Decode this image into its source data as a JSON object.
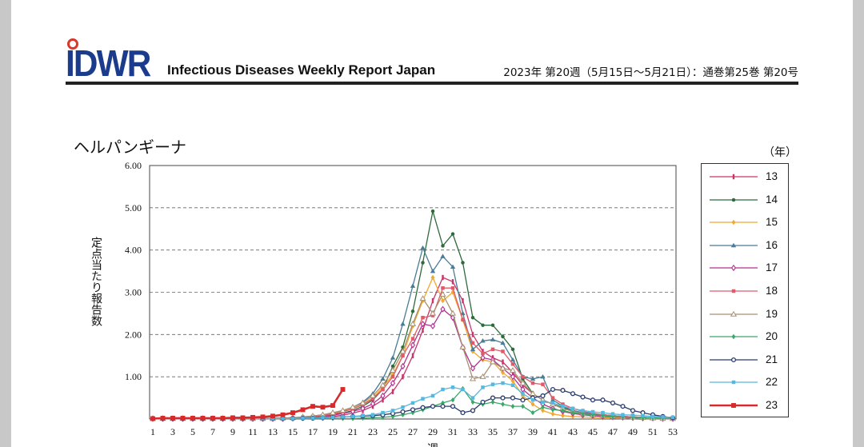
{
  "header": {
    "logo": "IDWR",
    "publication_title": "Infectious Diseases Weekly Report Japan",
    "issue_info": "2023年 第20週（5月15日〜5月21日）：通巻第25巻  第20号"
  },
  "chart_data": {
    "type": "line",
    "title": "ヘルパンギーナ",
    "ylabel": "定点当たり報告数",
    "xlabel": "週",
    "legend_title": "（年）",
    "ylim": [
      0,
      6
    ],
    "yticks": [
      "6.00",
      "5.00",
      "4.00",
      "3.00",
      "2.00",
      "1.00"
    ],
    "xlim": [
      1,
      53
    ],
    "xticks": [
      1,
      3,
      5,
      7,
      9,
      11,
      13,
      15,
      17,
      19,
      21,
      23,
      25,
      27,
      29,
      31,
      33,
      35,
      37,
      39,
      41,
      43,
      45,
      47,
      49,
      51,
      53
    ],
    "grid": "horizontal-dashed",
    "legend_position": "right",
    "series": [
      {
        "name": "13",
        "color": "#c9356b",
        "marker": "bar",
        "values": [
          0.01,
          0.01,
          0.01,
          0.01,
          0.01,
          0.01,
          0.01,
          0.01,
          0.01,
          0.01,
          0.01,
          0.01,
          0.01,
          0.01,
          0.02,
          0.02,
          0.03,
          0.04,
          0.06,
          0.09,
          0.14,
          0.2,
          0.3,
          0.45,
          0.65,
          1.0,
          1.5,
          2.1,
          2.8,
          3.35,
          3.25,
          2.8,
          2.0,
          1.6,
          1.45,
          1.35,
          1.1,
          0.8,
          0.6,
          0.45,
          0.35,
          0.25,
          0.2,
          0.15,
          0.12,
          0.1,
          0.08,
          0.06,
          0.05,
          0.04,
          0.03,
          0.02,
          0.01
        ]
      },
      {
        "name": "14",
        "color": "#2e6b3c",
        "marker": "dot",
        "values": [
          0.01,
          0.01,
          0.01,
          0.01,
          0.01,
          0.01,
          0.01,
          0.01,
          0.01,
          0.01,
          0.01,
          0.01,
          0.02,
          0.02,
          0.03,
          0.04,
          0.05,
          0.07,
          0.1,
          0.14,
          0.2,
          0.3,
          0.45,
          0.7,
          1.25,
          1.7,
          2.55,
          3.7,
          4.92,
          4.1,
          4.38,
          3.7,
          2.4,
          2.22,
          2.22,
          1.95,
          1.65,
          0.95,
          0.6,
          0.45,
          0.35,
          0.27,
          0.2,
          0.15,
          0.12,
          0.1,
          0.08,
          0.06,
          0.05,
          0.04,
          0.03,
          0.02,
          0.01
        ]
      },
      {
        "name": "15",
        "color": "#f0a830",
        "marker": "diamond",
        "values": [
          0.01,
          0.01,
          0.01,
          0.01,
          0.01,
          0.01,
          0.01,
          0.01,
          0.01,
          0.01,
          0.01,
          0.01,
          0.01,
          0.02,
          0.03,
          0.04,
          0.06,
          0.09,
          0.13,
          0.18,
          0.25,
          0.35,
          0.5,
          0.75,
          1.05,
          1.5,
          2.2,
          2.8,
          3.35,
          2.8,
          3.0,
          2.35,
          1.6,
          1.4,
          1.35,
          1.1,
          0.9,
          0.55,
          0.35,
          0.2,
          0.12,
          0.08,
          0.06,
          0.05,
          0.04,
          0.03,
          0.03,
          0.02,
          0.02,
          0.01,
          0.01,
          0.01,
          0.01
        ]
      },
      {
        "name": "16",
        "color": "#4a7c95",
        "marker": "triangle",
        "values": [
          0.01,
          0.01,
          0.01,
          0.01,
          0.01,
          0.01,
          0.01,
          0.01,
          0.01,
          0.01,
          0.01,
          0.01,
          0.01,
          0.02,
          0.03,
          0.05,
          0.07,
          0.1,
          0.15,
          0.2,
          0.28,
          0.4,
          0.6,
          0.95,
          1.45,
          2.25,
          3.15,
          4.05,
          3.5,
          3.85,
          3.6,
          2.5,
          1.65,
          1.85,
          1.88,
          1.8,
          1.4,
          1.0,
          0.95,
          1.0,
          0.45,
          0.3,
          0.2,
          0.15,
          0.12,
          0.1,
          0.08,
          0.06,
          0.05,
          0.04,
          0.03,
          0.02,
          0.01
        ]
      },
      {
        "name": "17",
        "color": "#b0308f",
        "marker": "open-diamond",
        "values": [
          0.01,
          0.01,
          0.01,
          0.01,
          0.01,
          0.01,
          0.01,
          0.01,
          0.01,
          0.01,
          0.01,
          0.01,
          0.01,
          0.01,
          0.02,
          0.03,
          0.04,
          0.06,
          0.09,
          0.13,
          0.18,
          0.25,
          0.36,
          0.55,
          0.85,
          1.25,
          1.75,
          2.25,
          2.2,
          2.6,
          2.4,
          1.7,
          1.2,
          1.45,
          1.4,
          1.2,
          1.0,
          0.7,
          0.5,
          0.35,
          0.25,
          0.18,
          0.13,
          0.1,
          0.08,
          0.06,
          0.05,
          0.04,
          0.03,
          0.02,
          0.02,
          0.01,
          0.01
        ]
      },
      {
        "name": "18",
        "color": "#e05a6a",
        "marker": "square",
        "values": [
          0.01,
          0.01,
          0.01,
          0.01,
          0.01,
          0.01,
          0.01,
          0.01,
          0.01,
          0.01,
          0.01,
          0.01,
          0.01,
          0.02,
          0.03,
          0.04,
          0.06,
          0.08,
          0.12,
          0.17,
          0.24,
          0.34,
          0.48,
          0.7,
          1.0,
          1.5,
          1.9,
          2.4,
          2.45,
          3.1,
          3.1,
          2.35,
          1.8,
          1.55,
          1.65,
          1.6,
          1.3,
          1.0,
          0.85,
          0.82,
          0.5,
          0.35,
          0.25,
          0.18,
          0.14,
          0.1,
          0.08,
          0.06,
          0.05,
          0.04,
          0.03,
          0.02,
          0.01
        ]
      },
      {
        "name": "19",
        "color": "#a89070",
        "marker": "open-triangle",
        "values": [
          0.01,
          0.01,
          0.01,
          0.01,
          0.01,
          0.01,
          0.01,
          0.01,
          0.01,
          0.01,
          0.01,
          0.01,
          0.01,
          0.02,
          0.03,
          0.05,
          0.07,
          0.1,
          0.15,
          0.2,
          0.28,
          0.38,
          0.55,
          0.8,
          1.15,
          1.6,
          2.25,
          2.85,
          2.5,
          2.95,
          2.5,
          1.7,
          0.95,
          1.0,
          1.35,
          1.2,
          1.15,
          0.85,
          0.6,
          0.45,
          0.35,
          0.25,
          0.18,
          0.13,
          0.1,
          0.08,
          0.06,
          0.05,
          0.04,
          0.03,
          0.02,
          0.01,
          0.01
        ]
      },
      {
        "name": "20",
        "color": "#3aa868",
        "marker": "diamond",
        "values": [
          0.01,
          0.01,
          0.01,
          0.01,
          0.01,
          0.01,
          0.01,
          0.01,
          0.01,
          0.01,
          0.01,
          0.01,
          0.01,
          0.01,
          0.01,
          0.01,
          0.01,
          0.01,
          0.01,
          0.01,
          0.01,
          0.02,
          0.03,
          0.04,
          0.06,
          0.1,
          0.15,
          0.22,
          0.3,
          0.38,
          0.45,
          0.72,
          0.4,
          0.35,
          0.4,
          0.35,
          0.3,
          0.3,
          0.15,
          0.28,
          0.22,
          0.2,
          0.15,
          0.12,
          0.1,
          0.08,
          0.06,
          0.05,
          0.04,
          0.03,
          0.03,
          0.02,
          0.02
        ]
      },
      {
        "name": "21",
        "color": "#283a6e",
        "marker": "open-circle",
        "values": [
          0.01,
          0.01,
          0.01,
          0.01,
          0.01,
          0.01,
          0.01,
          0.01,
          0.01,
          0.01,
          0.01,
          0.01,
          0.01,
          0.01,
          0.01,
          0.02,
          0.02,
          0.03,
          0.04,
          0.05,
          0.06,
          0.07,
          0.08,
          0.1,
          0.13,
          0.17,
          0.22,
          0.27,
          0.3,
          0.3,
          0.3,
          0.15,
          0.2,
          0.4,
          0.5,
          0.5,
          0.5,
          0.45,
          0.5,
          0.55,
          0.7,
          0.68,
          0.6,
          0.52,
          0.45,
          0.45,
          0.38,
          0.3,
          0.2,
          0.15,
          0.1,
          0.06,
          0.03
        ]
      },
      {
        "name": "22",
        "color": "#55b8e0",
        "marker": "square",
        "values": [
          0.01,
          0.01,
          0.01,
          0.01,
          0.01,
          0.01,
          0.01,
          0.01,
          0.01,
          0.01,
          0.01,
          0.01,
          0.01,
          0.01,
          0.01,
          0.02,
          0.02,
          0.03,
          0.04,
          0.05,
          0.06,
          0.08,
          0.1,
          0.15,
          0.2,
          0.28,
          0.38,
          0.48,
          0.55,
          0.7,
          0.75,
          0.7,
          0.5,
          0.75,
          0.82,
          0.85,
          0.8,
          0.6,
          0.45,
          0.4,
          0.38,
          0.3,
          0.25,
          0.2,
          0.17,
          0.15,
          0.12,
          0.1,
          0.09,
          0.08,
          0.06,
          0.05,
          0.04
        ]
      },
      {
        "name": "23",
        "color": "#d82a2a",
        "marker": "square",
        "bold": true,
        "values": [
          0.01,
          0.02,
          0.02,
          0.02,
          0.02,
          0.02,
          0.02,
          0.02,
          0.03,
          0.03,
          0.04,
          0.05,
          0.07,
          0.1,
          0.15,
          0.22,
          0.3,
          0.28,
          0.32,
          0.7
        ]
      }
    ]
  }
}
